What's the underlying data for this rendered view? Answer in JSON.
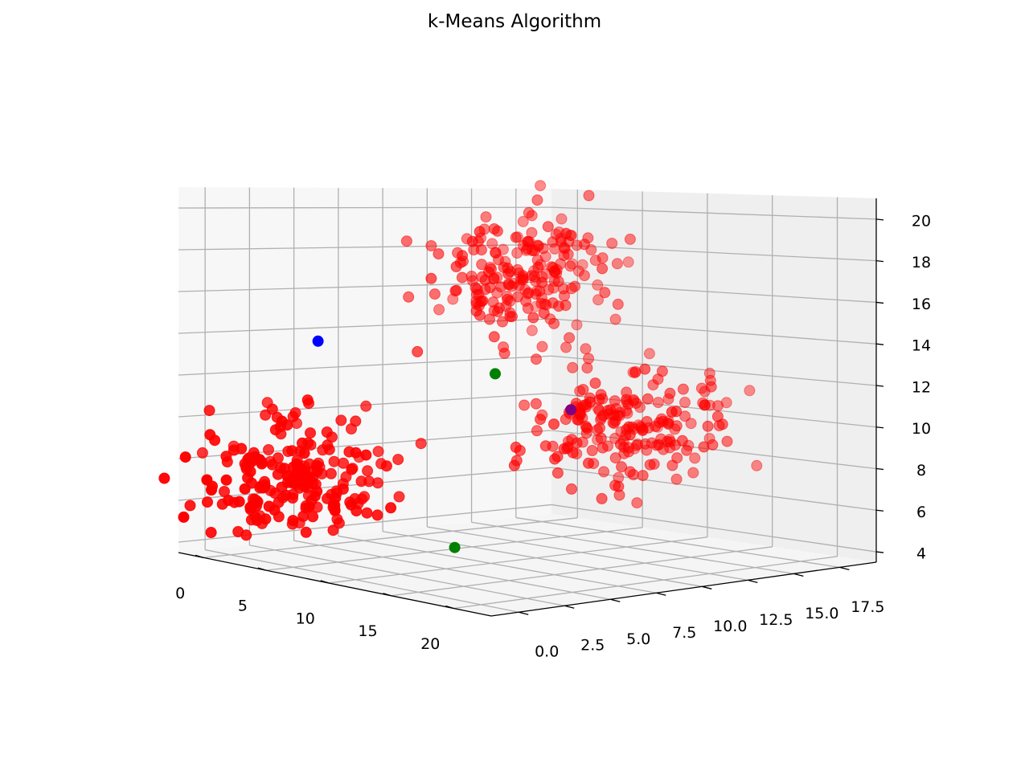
{
  "chart_data": {
    "type": "scatter",
    "projection": "3d",
    "title": "k-Means Algorithm",
    "xlabel": "",
    "ylabel": "",
    "zlabel": "",
    "xlim": [
      -2,
      23
    ],
    "ylim": [
      -1.5,
      19.5
    ],
    "zlim": [
      3.5,
      21
    ],
    "xticks": [
      "0",
      "5",
      "10",
      "15",
      "20"
    ],
    "yticks": [
      "0.0",
      "2.5",
      "5.0",
      "7.5",
      "10.0",
      "12.5",
      "15.0",
      "17.5"
    ],
    "zticks": [
      "4",
      "6",
      "8",
      "10",
      "12",
      "14",
      "16",
      "18",
      "20"
    ],
    "grid": true,
    "legend": "none",
    "colors": {
      "points": "#ff0000",
      "centroid_1": "#0000ff",
      "centroid_2": "#008000",
      "centroid_3": "#800080",
      "pane": "#f2f2f2",
      "grid": "#b0b0b0"
    },
    "clusters": [
      {
        "color": "#ff0000",
        "center": [
          5,
          0,
          8
        ],
        "spread": [
          2.2,
          2.2,
          1.4
        ],
        "count": 210
      },
      {
        "color": "#ff0000",
        "center": [
          10,
          15,
          9.5
        ],
        "spread": [
          2.2,
          2.2,
          1.5
        ],
        "count": 200
      },
      {
        "color": "#ff0000",
        "center": [
          5,
          13,
          17
        ],
        "spread": [
          2,
          2,
          1.6
        ],
        "count": 200
      }
    ],
    "centroids": [
      {
        "color": "#0000ff",
        "x": 2.3,
        "y": 3.3,
        "z": 14
      },
      {
        "color": "#008000",
        "x": 15,
        "y": 2,
        "z": 5.5
      },
      {
        "color": "#008000",
        "x": 4,
        "y": 12,
        "z": 12
      },
      {
        "color": "#800080",
        "x": 8.5,
        "y": 13,
        "z": 10.5
      }
    ]
  }
}
